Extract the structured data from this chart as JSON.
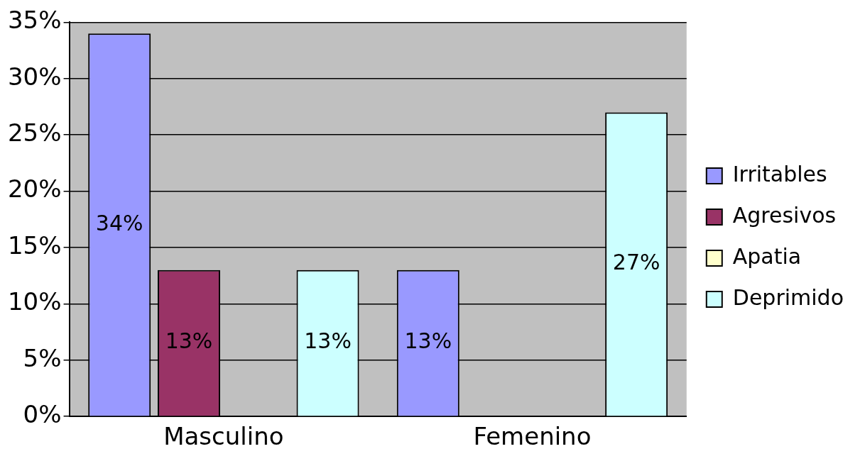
{
  "chart_data": {
    "type": "bar",
    "categories": [
      "Masculino",
      "Femenino"
    ],
    "series": [
      {
        "name": "Irritables",
        "color": "#9999ff",
        "values": [
          34,
          13
        ],
        "value_labels": [
          "34%",
          "13%"
        ]
      },
      {
        "name": "Agresivos",
        "color": "#993366",
        "values": [
          13,
          0
        ],
        "value_labels": [
          "13%",
          null
        ]
      },
      {
        "name": "Apatia",
        "color": "#ffffcc",
        "values": [
          0,
          0
        ],
        "value_labels": [
          null,
          null
        ]
      },
      {
        "name": "Deprimido",
        "color": "#ccffff",
        "values": [
          13,
          27
        ],
        "value_labels": [
          "13%",
          "27%"
        ]
      }
    ],
    "ylim": [
      0,
      35
    ],
    "yticks": [
      {
        "value": 0,
        "label": "0%"
      },
      {
        "value": 5,
        "label": "5%"
      },
      {
        "value": 10,
        "label": "10%"
      },
      {
        "value": 15,
        "label": "15%"
      },
      {
        "value": 20,
        "label": "20%"
      },
      {
        "value": 25,
        "label": "25%"
      },
      {
        "value": 30,
        "label": "30%"
      },
      {
        "value": 35,
        "label": "35%"
      }
    ],
    "grid": "y",
    "legend": "right"
  }
}
